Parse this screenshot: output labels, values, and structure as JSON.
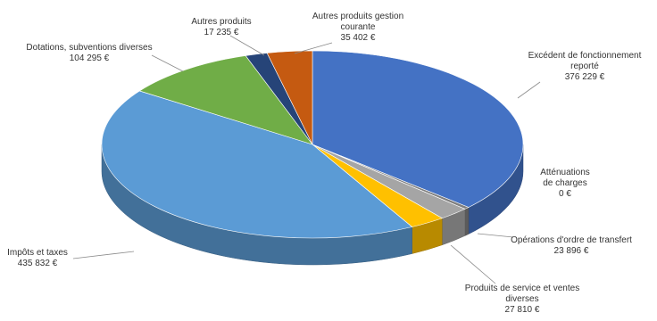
{
  "chart_data": {
    "type": "pie",
    "title": "",
    "style": "3d",
    "currency": "€",
    "slices": [
      {
        "name": "Excédent de fonctionnement reporté",
        "value": 376229,
        "label": [
          "Excédent de fonctionnement",
          "reporté",
          "376 229 €"
        ],
        "color": "#4472C4"
      },
      {
        "name": "Atténuations de charges",
        "value": 0,
        "label": [
          "Atténuations",
          "de charges",
          "0 €"
        ],
        "color": "#7F7F7F"
      },
      {
        "name": "Opérations d'ordre de transfert",
        "value": 23896,
        "label": [
          "Opérations d'ordre de transfert",
          "23 896 €"
        ],
        "color": "#A5A5A5"
      },
      {
        "name": "Produits de service et ventes diverses",
        "value": 27810,
        "label": [
          "Produits de service et ventes",
          "diverses",
          "27 810 €"
        ],
        "color": "#FFC000"
      },
      {
        "name": "Impôts et taxes",
        "value": 435832,
        "label": [
          "Impôts et taxes",
          "435 832 €"
        ],
        "color": "#5B9BD5"
      },
      {
        "name": "Dotations, subventions diverses",
        "value": 104295,
        "label": [
          "Dotations, subventions diverses",
          "104 295 €"
        ],
        "color": "#70AD47"
      },
      {
        "name": "Autres produits",
        "value": 17235,
        "label": [
          "Autres produits",
          "17 235 €"
        ],
        "color": "#264478"
      },
      {
        "name": "Autres produits gestion courante",
        "value": 35402,
        "label": [
          "Autres produits gestion",
          "courante",
          "35 402 €"
        ],
        "color": "#C55A11"
      }
    ]
  }
}
